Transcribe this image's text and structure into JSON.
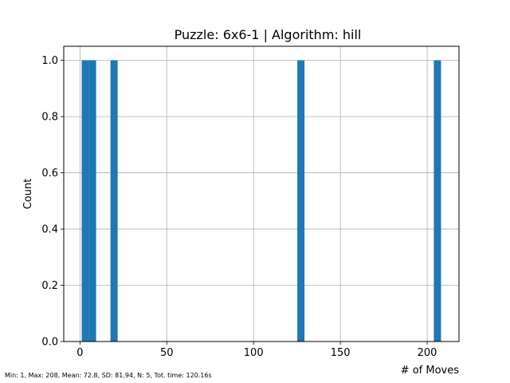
{
  "chart_data": {
    "type": "bar",
    "title": "Puzzle: 6x6-1 | Algorithm: hill",
    "xlabel": "# of Moves",
    "ylabel": "Count",
    "xlim": [
      -9.35,
      218.35
    ],
    "ylim": [
      0,
      1.05
    ],
    "xticks": [
      0,
      50,
      100,
      150,
      200
    ],
    "yticks": [
      0.0,
      0.2,
      0.4,
      0.6,
      0.8,
      1.0
    ],
    "ytick_labels": [
      "0.0",
      "0.2",
      "0.4",
      "0.6",
      "0.8",
      "1.0"
    ],
    "grid": true,
    "bar_color": "#1f77b4",
    "bins": [
      {
        "x0": 1.0,
        "x1": 5.14,
        "count": 1
      },
      {
        "x0": 5.14,
        "x1": 9.28,
        "count": 1
      },
      {
        "x0": 17.56,
        "x1": 21.7,
        "count": 1
      },
      {
        "x0": 125.2,
        "x1": 129.34,
        "count": 1
      },
      {
        "x0": 203.86,
        "x1": 208.0,
        "count": 1
      }
    ],
    "stats_text": "Min: 1, Max: 208, Mean: 72.8, SD: 81.94, N: 5, Tot. time: 120.16s"
  }
}
